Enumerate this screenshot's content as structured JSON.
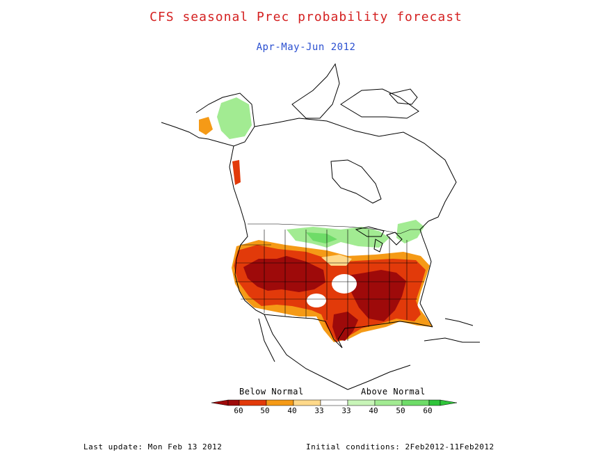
{
  "title": "CFS seasonal Prec probability forecast",
  "subtitle": "Apr-May-Jun 2012",
  "legend": {
    "below_label": "Below Normal",
    "above_label": "Above Normal",
    "ticks": [
      "60",
      "50",
      "40",
      "33",
      "33",
      "40",
      "50",
      "60"
    ],
    "colors": {
      "below_60": "#9e0a0a",
      "below_50": "#e23a0a",
      "below_40": "#f59a16",
      "below_33": "#ffd98a",
      "normal": "#ffffff",
      "above_33": "#c8f5b8",
      "above_40": "#a2eb92",
      "above_50": "#6edc68",
      "above_60": "#2fc43a"
    }
  },
  "footer": {
    "last_update": "Last update: Mon Feb 13 2012",
    "initial_conditions": "Initial conditions: 2Feb2012-11Feb2012"
  }
}
